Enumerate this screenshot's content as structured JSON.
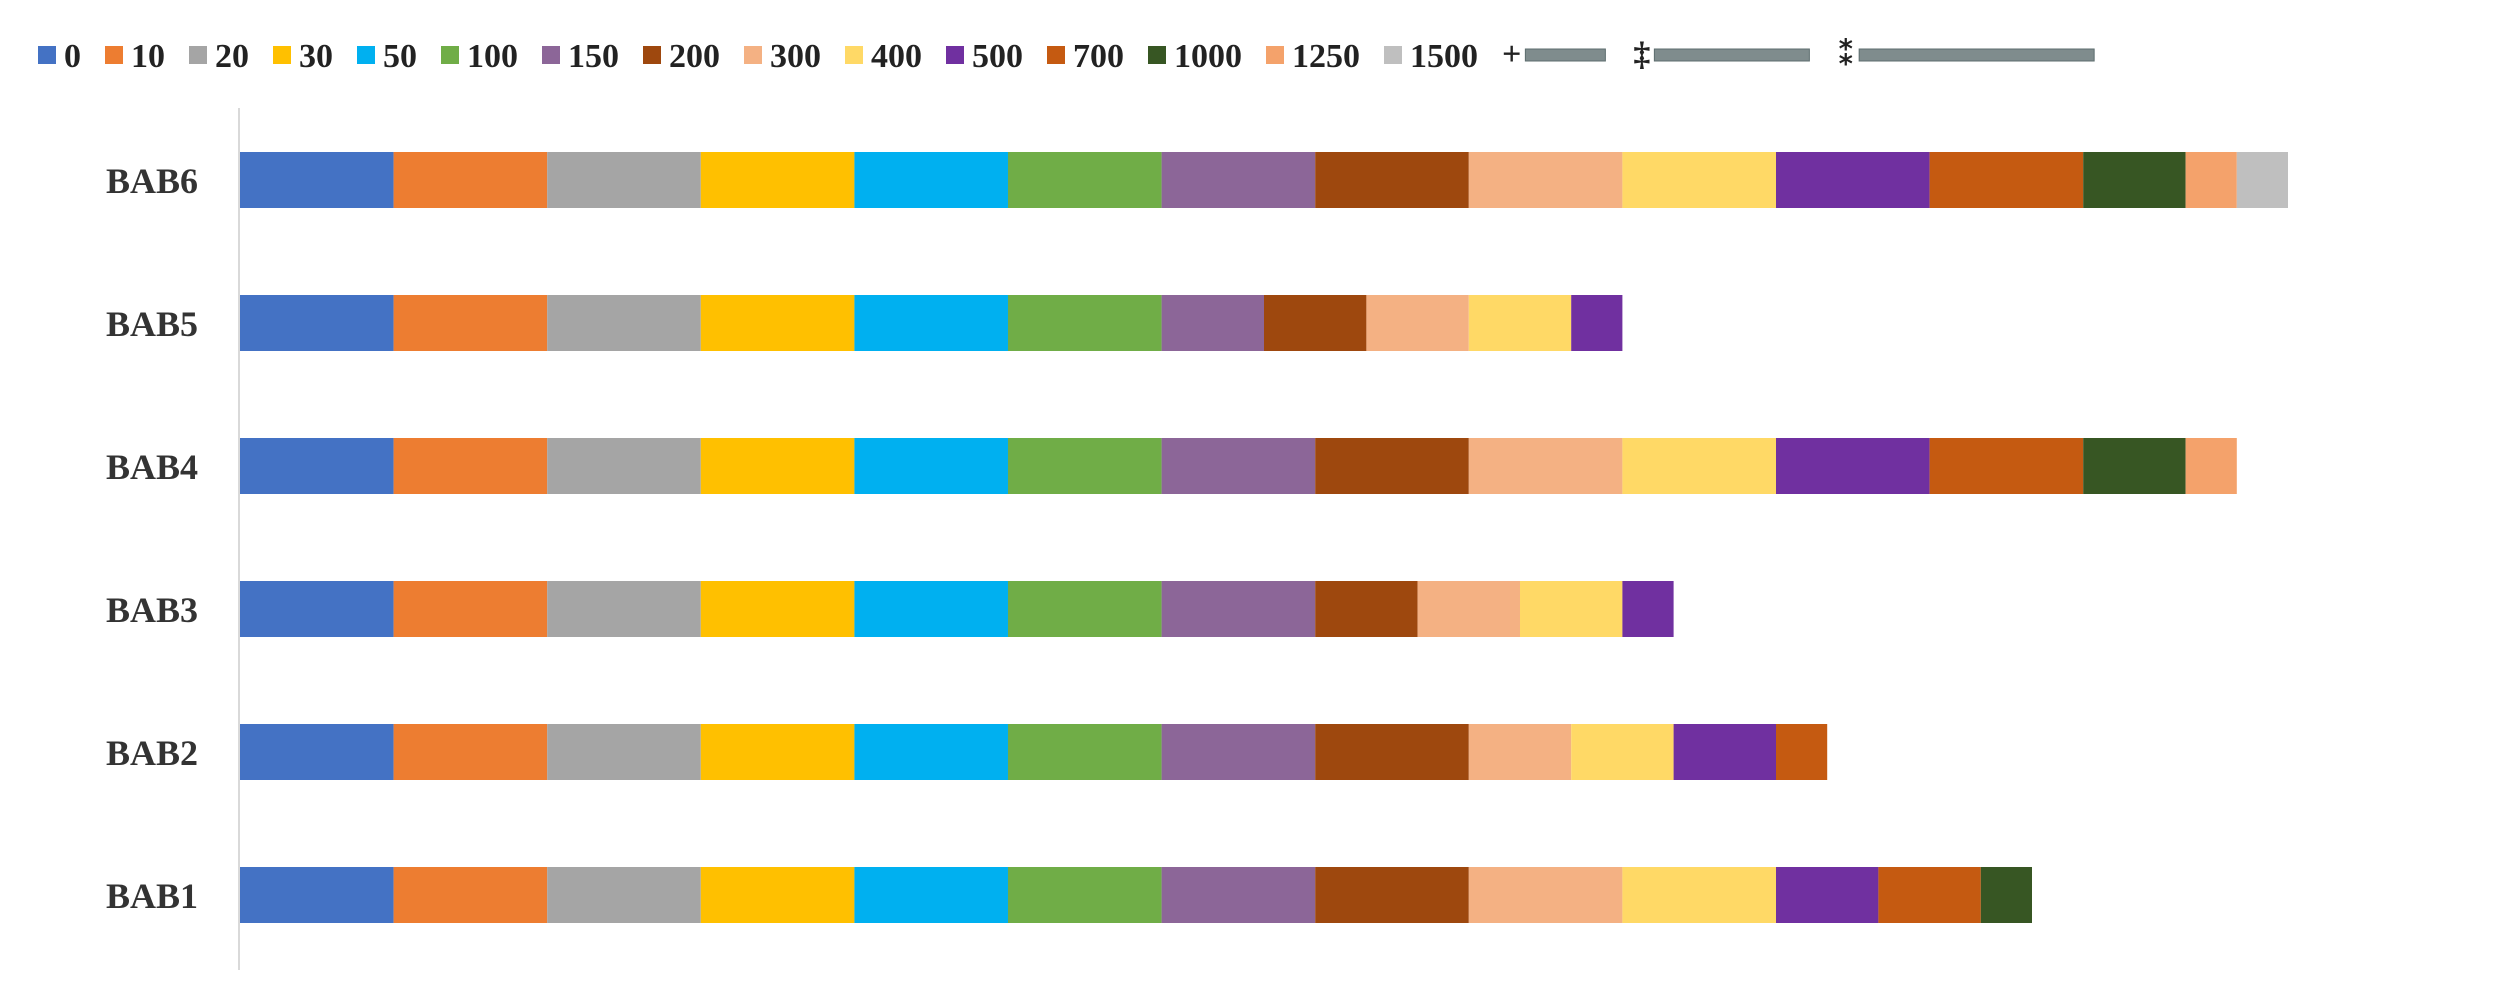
{
  "chart_data": {
    "type": "bar",
    "orientation": "horizontal",
    "stacked": true,
    "title": "",
    "xlabel": "",
    "ylabel": "",
    "grid": false,
    "legend_position": "top",
    "categories": [
      "BAB6",
      "BAB5",
      "BAB4",
      "BAB3",
      "BAB2",
      "BAB1"
    ],
    "series": [
      {
        "name": "0",
        "color": "#4472C4",
        "values": [
          3,
          3,
          3,
          3,
          3,
          3
        ]
      },
      {
        "name": "10",
        "color": "#ED7D31",
        "values": [
          3,
          3,
          3,
          3,
          3,
          3
        ]
      },
      {
        "name": "20",
        "color": "#A5A5A5",
        "values": [
          3,
          3,
          3,
          3,
          3,
          3
        ]
      },
      {
        "name": "30",
        "color": "#FFC000",
        "values": [
          3,
          3,
          3,
          3,
          3,
          3
        ]
      },
      {
        "name": "50",
        "color": "#00B0F0",
        "values": [
          3,
          3,
          3,
          3,
          3,
          3
        ]
      },
      {
        "name": "100",
        "color": "#70AD47",
        "values": [
          3,
          3,
          3,
          3,
          3,
          3
        ]
      },
      {
        "name": "150",
        "color": "#8C6698",
        "values": [
          3,
          2,
          3,
          3,
          3,
          3
        ]
      },
      {
        "name": "200",
        "color": "#9E480E",
        "values": [
          3,
          2,
          3,
          2,
          3,
          3
        ]
      },
      {
        "name": "300",
        "color": "#F4B183",
        "values": [
          3,
          2,
          3,
          2,
          2,
          3
        ]
      },
      {
        "name": "400",
        "color": "#FFD966",
        "values": [
          3,
          2,
          3,
          2,
          2,
          3
        ]
      },
      {
        "name": "500",
        "color": "#7030A0",
        "values": [
          3,
          1,
          3,
          1,
          2,
          2
        ]
      },
      {
        "name": "700",
        "color": "#C55A11",
        "values": [
          3,
          0,
          3,
          0,
          1,
          2
        ]
      },
      {
        "name": "1000",
        "color": "#375623",
        "values": [
          2,
          0,
          2,
          0,
          0,
          1
        ]
      },
      {
        "name": "1250",
        "color": "#F4A26B",
        "values": [
          1,
          0,
          1,
          0,
          0,
          0
        ]
      },
      {
        "name": "1500",
        "color": "#BFBFBF",
        "values": [
          1,
          0,
          0,
          0,
          0,
          0
        ]
      }
    ],
    "legend_extra": [
      {
        "marker": "+",
        "color": "#7F8C8D"
      },
      {
        "marker": "‡",
        "color": "#7F8C8D"
      },
      {
        "marker": "⁑",
        "color": "#7F8C8D"
      }
    ]
  }
}
